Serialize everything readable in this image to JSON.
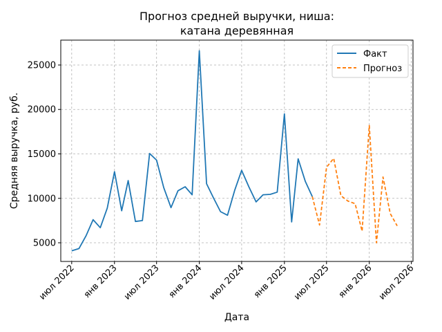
{
  "chart_data": {
    "type": "line",
    "title_lines": [
      "Прогноз средней выручки, ниша:",
      "катана деревянная"
    ],
    "xlabel": "Дата",
    "ylabel": "Средняя выручка, руб.",
    "xlim": [
      "2022-05-15",
      "2026-07-08"
    ],
    "ylim": [
      2900,
      27800
    ],
    "grid": true,
    "legend_position": "top-right",
    "x_ticks": [
      {
        "date": "2022-07-01",
        "label": "июл 2022"
      },
      {
        "date": "2023-01-01",
        "label": "янв 2023"
      },
      {
        "date": "2023-07-01",
        "label": "июл 2023"
      },
      {
        "date": "2024-01-01",
        "label": "янв 2024"
      },
      {
        "date": "2024-07-01",
        "label": "июл 2024"
      },
      {
        "date": "2025-01-01",
        "label": "янв 2025"
      },
      {
        "date": "2025-07-01",
        "label": "июл 2025"
      },
      {
        "date": "2026-01-01",
        "label": "янв 2026"
      },
      {
        "date": "2026-07-01",
        "label": "июл 2026"
      }
    ],
    "y_ticks": [
      5000,
      10000,
      15000,
      20000,
      25000
    ],
    "series": [
      {
        "name": "Факт",
        "color": "#1f77b4",
        "style": "solid",
        "points": [
          [
            "2022-07-01",
            4100
          ],
          [
            "2022-08-01",
            4350
          ],
          [
            "2022-09-01",
            5800
          ],
          [
            "2022-10-01",
            7600
          ],
          [
            "2022-11-01",
            6700
          ],
          [
            "2022-12-01",
            8900
          ],
          [
            "2023-01-01",
            13000
          ],
          [
            "2023-02-01",
            8600
          ],
          [
            "2023-03-01",
            12000
          ],
          [
            "2023-04-01",
            7400
          ],
          [
            "2023-05-01",
            7500
          ],
          [
            "2023-06-01",
            15050
          ],
          [
            "2023-07-01",
            14300
          ],
          [
            "2023-08-01",
            11200
          ],
          [
            "2023-09-01",
            8950
          ],
          [
            "2023-10-01",
            10850
          ],
          [
            "2023-11-01",
            11300
          ],
          [
            "2023-12-01",
            10400
          ],
          [
            "2024-01-01",
            26600
          ],
          [
            "2024-02-01",
            11650
          ],
          [
            "2024-03-01",
            10100
          ],
          [
            "2024-04-01",
            8500
          ],
          [
            "2024-05-01",
            8100
          ],
          [
            "2024-06-01",
            10900
          ],
          [
            "2024-07-01",
            13150
          ],
          [
            "2024-08-01",
            11300
          ],
          [
            "2024-09-01",
            9600
          ],
          [
            "2024-10-01",
            10400
          ],
          [
            "2024-11-01",
            10450
          ],
          [
            "2024-12-01",
            10700
          ],
          [
            "2025-01-01",
            19500
          ],
          [
            "2025-02-01",
            7350
          ],
          [
            "2025-03-01",
            14450
          ],
          [
            "2025-04-01",
            11900
          ],
          [
            "2025-05-01",
            10200
          ]
        ]
      },
      {
        "name": "Прогноз",
        "color": "#ff7f0e",
        "style": "dashed",
        "points": [
          [
            "2025-05-01",
            10200
          ],
          [
            "2025-06-01",
            7000
          ],
          [
            "2025-07-01",
            13500
          ],
          [
            "2025-08-01",
            14500
          ],
          [
            "2025-09-01",
            10300
          ],
          [
            "2025-10-01",
            9700
          ],
          [
            "2025-11-01",
            9400
          ],
          [
            "2025-12-01",
            6300
          ],
          [
            "2026-01-01",
            18200
          ],
          [
            "2026-02-01",
            5000
          ],
          [
            "2026-03-01",
            12400
          ],
          [
            "2026-04-01",
            8300
          ],
          [
            "2026-05-01",
            6900
          ]
        ]
      }
    ]
  }
}
